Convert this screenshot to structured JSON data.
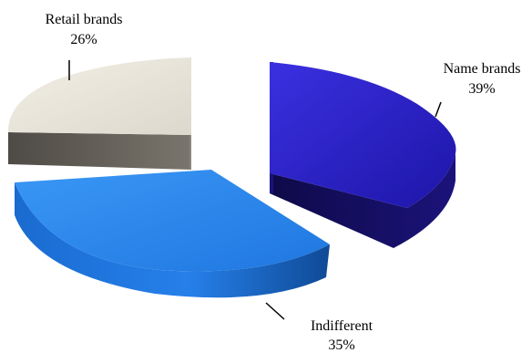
{
  "chart_data": {
    "type": "pie",
    "style": "3d-exploded",
    "legend": "none",
    "slices": [
      {
        "name": "Name brands",
        "value": 39,
        "label_value": "39%",
        "color": "#2a1fc8",
        "side_color": "#150f62"
      },
      {
        "name": "Indifferent",
        "value": 35,
        "label_value": "35%",
        "color": "#2a86ee",
        "side_color": "#1558b0"
      },
      {
        "name": "Retail brands",
        "value": 26,
        "label_value": "26%",
        "color": "#e7e4da",
        "side_color": "#66615a"
      }
    ]
  }
}
